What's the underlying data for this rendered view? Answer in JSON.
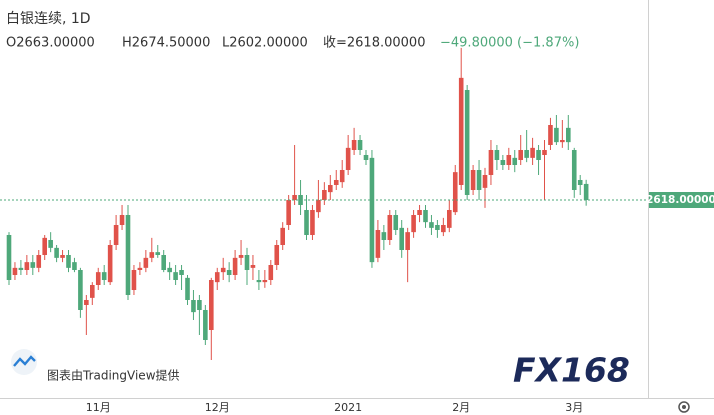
{
  "chart_data": {
    "type": "candlestick",
    "header": {
      "symbol": "白银连续, 1D",
      "ohlc_text": [
        "O2663.00000",
        "H2674.50000",
        "L2602.00000",
        "收=2618.00000",
        "−49.80000 (−1.87%)"
      ]
    },
    "attribution": "图表由TradingView提供",
    "watermark": "FX168",
    "up_color": "#e0524a",
    "down_color": "#4ea87a",
    "ylim": [
      2058,
      3178
    ],
    "last_price": {
      "value": 2618,
      "label": "2618.00000"
    },
    "categories": [
      null,
      null,
      null,
      null,
      null,
      null,
      null,
      null,
      null,
      null,
      null,
      null,
      null,
      null,
      null,
      "11月",
      null,
      null,
      null,
      null,
      null,
      null,
      null,
      null,
      null,
      null,
      null,
      null,
      null,
      null,
      null,
      null,
      null,
      null,
      null,
      "12月",
      null,
      null,
      null,
      null,
      null,
      null,
      null,
      null,
      null,
      null,
      null,
      null,
      null,
      null,
      null,
      null,
      null,
      null,
      null,
      null,
      null,
      "2021",
      null,
      null,
      null,
      null,
      null,
      null,
      null,
      null,
      null,
      null,
      null,
      null,
      null,
      null,
      null,
      null,
      null,
      null,
      "2月",
      null,
      null,
      null,
      null,
      null,
      null,
      null,
      null,
      null,
      null,
      null,
      null,
      null,
      null,
      null,
      null,
      null,
      null,
      "3月",
      null,
      null
    ],
    "open": [
      2520,
      2408,
      2428,
      2422,
      2444,
      2428,
      2464,
      2506,
      2484,
      2456,
      2464,
      2444,
      2422,
      2324,
      2344,
      2380,
      2416,
      2388,
      2492,
      2548,
      2576,
      2366,
      2422,
      2428,
      2456,
      2472,
      2464,
      2428,
      2416,
      2422,
      2400,
      2338,
      2338,
      2310,
      2254,
      2388,
      2416,
      2422,
      2408,
      2456,
      2464,
      2428,
      2394,
      2388,
      2394,
      2436,
      2492,
      2548,
      2618,
      2632,
      2590,
      2520,
      2584,
      2618,
      2640,
      2660,
      2668,
      2702,
      2758,
      2786,
      2744,
      2736,
      2456,
      2528,
      2506,
      2576,
      2540,
      2478,
      2528,
      2576,
      2590,
      2556,
      2548,
      2528,
      2540,
      2584,
      2660,
      2926,
      2646,
      2702,
      2652,
      2688,
      2758,
      2730,
      2716,
      2736,
      2730,
      2758,
      2736,
      2758,
      2744,
      2772,
      2820,
      2780,
      2820,
      2758,
      2674,
      2663
    ],
    "high": [
      2528,
      2444,
      2450,
      2464,
      2464,
      2478,
      2520,
      2528,
      2492,
      2478,
      2478,
      2456,
      2428,
      2352,
      2388,
      2428,
      2436,
      2506,
      2576,
      2604,
      2604,
      2436,
      2444,
      2478,
      2512,
      2492,
      2478,
      2444,
      2436,
      2436,
      2408,
      2366,
      2352,
      2324,
      2400,
      2428,
      2456,
      2444,
      2478,
      2506,
      2484,
      2464,
      2422,
      2422,
      2450,
      2506,
      2556,
      2632,
      2772,
      2674,
      2632,
      2604,
      2674,
      2668,
      2688,
      2702,
      2730,
      2800,
      2820,
      2800,
      2758,
      2758,
      2562,
      2548,
      2590,
      2590,
      2562,
      2540,
      2590,
      2604,
      2604,
      2576,
      2562,
      2568,
      2618,
      2716,
      3044,
      2940,
      2716,
      2730,
      2708,
      2786,
      2772,
      2744,
      2764,
      2758,
      2800,
      2814,
      2792,
      2772,
      2786,
      2848,
      2856,
      2842,
      2856,
      2764,
      2688,
      2674.5
    ],
    "low": [
      2380,
      2394,
      2408,
      2408,
      2408,
      2416,
      2450,
      2472,
      2444,
      2444,
      2416,
      2416,
      2288,
      2240,
      2324,
      2366,
      2380,
      2380,
      2478,
      2534,
      2338,
      2352,
      2408,
      2416,
      2444,
      2456,
      2416,
      2394,
      2380,
      2366,
      2324,
      2282,
      2240,
      2212,
      2170,
      2366,
      2394,
      2388,
      2394,
      2436,
      2380,
      2394,
      2366,
      2372,
      2380,
      2422,
      2478,
      2534,
      2604,
      2576,
      2506,
      2506,
      2568,
      2604,
      2618,
      2646,
      2652,
      2688,
      2744,
      2744,
      2716,
      2428,
      2444,
      2478,
      2492,
      2520,
      2456,
      2388,
      2512,
      2556,
      2540,
      2520,
      2512,
      2517,
      2528,
      2576,
      2646,
      2618,
      2632,
      2618,
      2596,
      2660,
      2702,
      2702,
      2702,
      2696,
      2716,
      2724,
      2716,
      2688,
      2618,
      2758,
      2772,
      2764,
      2758,
      2624,
      2632,
      2602
    ],
    "close": [
      2394,
      2428,
      2422,
      2444,
      2428,
      2464,
      2512,
      2484,
      2456,
      2464,
      2428,
      2422,
      2310,
      2338,
      2380,
      2416,
      2394,
      2492,
      2548,
      2576,
      2352,
      2422,
      2428,
      2456,
      2472,
      2464,
      2422,
      2416,
      2394,
      2408,
      2338,
      2304,
      2310,
      2226,
      2394,
      2416,
      2428,
      2408,
      2456,
      2464,
      2422,
      2436,
      2388,
      2394,
      2436,
      2492,
      2540,
      2618,
      2632,
      2604,
      2520,
      2590,
      2618,
      2646,
      2660,
      2674,
      2702,
      2764,
      2786,
      2758,
      2730,
      2444,
      2534,
      2506,
      2576,
      2534,
      2478,
      2528,
      2576,
      2590,
      2556,
      2540,
      2534,
      2548,
      2590,
      2696,
      2960,
      2632,
      2702,
      2646,
      2688,
      2758,
      2730,
      2716,
      2744,
      2716,
      2758,
      2736,
      2764,
      2730,
      2758,
      2828,
      2780,
      2786,
      2780,
      2646,
      2660,
      2618
    ]
  }
}
